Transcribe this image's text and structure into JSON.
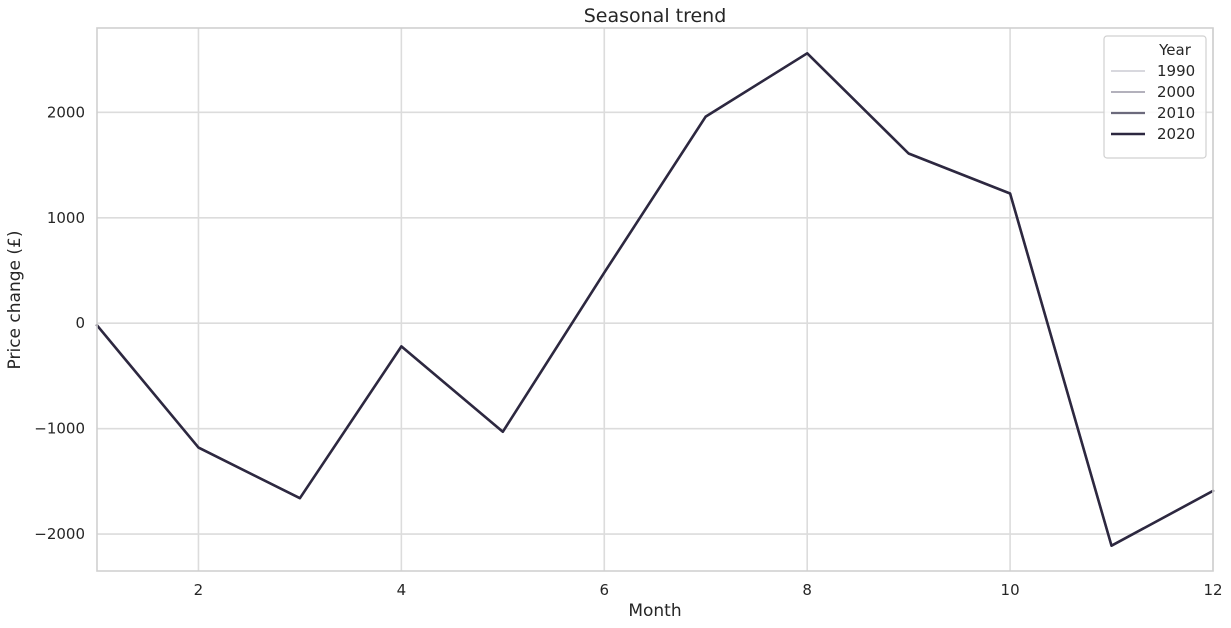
{
  "chart_data": {
    "type": "line",
    "title": "Seasonal trend",
    "xlabel": "Month",
    "ylabel": "Price change (£)",
    "xlim": [
      1,
      12
    ],
    "ylim": [
      -2350,
      2800
    ],
    "x_ticks": [
      2,
      4,
      6,
      8,
      10,
      12
    ],
    "y_ticks": [
      -2000,
      -1000,
      0,
      1000,
      2000
    ],
    "x_tick_labels": [
      "2",
      "4",
      "6",
      "8",
      "10",
      "12"
    ],
    "y_tick_labels": [
      "−2000",
      "−1000",
      "0",
      "1000",
      "2000"
    ],
    "grid": true,
    "legend": {
      "title": "Year",
      "placement": "top-right"
    },
    "x": [
      1,
      2,
      3,
      4,
      5,
      6,
      7,
      8,
      9,
      10,
      11,
      12
    ],
    "series": [
      {
        "name": "1990",
        "color": "#d3d3d9",
        "width": 1.8,
        "values": [
          -20,
          -1180,
          -1660,
          -220,
          -1030,
          480,
          1960,
          2560,
          1610,
          1230,
          -2110,
          -1590
        ]
      },
      {
        "name": "2000",
        "color": "#a8a6b2",
        "width": 1.8,
        "values": [
          -20,
          -1180,
          -1660,
          -220,
          -1030,
          480,
          1960,
          2560,
          1610,
          1230,
          -2110,
          -1590
        ]
      },
      {
        "name": "2010",
        "color": "#6c6a7c",
        "width": 2.2,
        "values": [
          -20,
          -1180,
          -1660,
          -220,
          -1030,
          480,
          1960,
          2560,
          1610,
          1230,
          -2110,
          -1590
        ]
      },
      {
        "name": "2020",
        "color": "#2d2840",
        "width": 2.6,
        "values": [
          -20,
          -1180,
          -1660,
          -220,
          -1030,
          480,
          1960,
          2560,
          1610,
          1230,
          -2110,
          -1590
        ]
      }
    ]
  }
}
